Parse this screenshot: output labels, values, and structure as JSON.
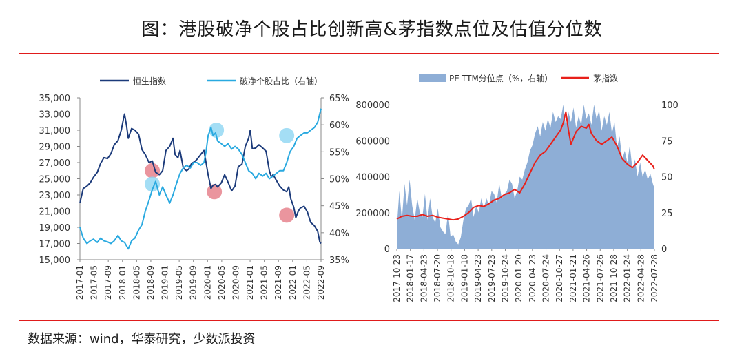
{
  "title": "图：港股破净个股占比创新高&茅指数点位及估值分位数",
  "source": "数据来源：wind，华泰研究，少数派投资",
  "colors": {
    "hsi": "#1b3a7a",
    "ratio": "#29a9e0",
    "pe_area": "#8eaed6",
    "mao": "#e8201a",
    "rule": "#e01b1b",
    "red_marker": "#e57a86",
    "blue_marker": "#8dd6f2"
  },
  "chart_data": [
    {
      "type": "line",
      "legend": [
        "恒生指数",
        "破净个股占比（右轴）"
      ],
      "x_tick_labels": [
        "2017-01",
        "2017-05",
        "2017-09",
        "2018-01",
        "2018-05",
        "2018-09",
        "2019-01",
        "2019-05",
        "2019-09",
        "2020-01",
        "2020-05",
        "2020-09",
        "2021-01",
        "2021-05",
        "2021-09",
        "2022-01",
        "2022-05",
        "2022-09"
      ],
      "y_left_ticks": [
        "35,000",
        "33,000",
        "31,000",
        "29,000",
        "27,000",
        "25,000",
        "23,000",
        "21,000",
        "19,000",
        "17,000",
        "15,000"
      ],
      "y_right_ticks": [
        "65%",
        "60%",
        "55%",
        "50%",
        "45%",
        "40%",
        "35%"
      ],
      "ylim_left": [
        15000,
        35000
      ],
      "ylim_right": [
        35,
        65
      ],
      "xlim": [
        2017.0,
        2022.83
      ],
      "series": [
        {
          "name": "恒生指数",
          "axis": "left",
          "x": [
            2017.0,
            2017.08,
            2017.17,
            2017.25,
            2017.33,
            2017.42,
            2017.5,
            2017.58,
            2017.67,
            2017.75,
            2017.83,
            2017.92,
            2018.0,
            2018.05,
            2018.08,
            2018.13,
            2018.17,
            2018.25,
            2018.33,
            2018.42,
            2018.5,
            2018.58,
            2018.67,
            2018.75,
            2018.83,
            2018.92,
            2019.0,
            2019.08,
            2019.17,
            2019.25,
            2019.3,
            2019.37,
            2019.42,
            2019.5,
            2019.58,
            2019.63,
            2019.7,
            2019.77,
            2019.83,
            2019.92,
            2020.0,
            2020.05,
            2020.1,
            2020.17,
            2020.22,
            2020.28,
            2020.33,
            2020.42,
            2020.5,
            2020.58,
            2020.67,
            2020.75,
            2020.83,
            2020.92,
            2021.0,
            2021.08,
            2021.12,
            2021.17,
            2021.25,
            2021.33,
            2021.42,
            2021.5,
            2021.58,
            2021.63,
            2021.67,
            2021.75,
            2021.83,
            2021.92,
            2022.0,
            2022.05,
            2022.1,
            2022.17,
            2022.22,
            2022.28,
            2022.33,
            2022.42,
            2022.5,
            2022.58,
            2022.67,
            2022.75,
            2022.8,
            2022.83
          ],
          "values": [
            22000,
            23800,
            24100,
            24500,
            25200,
            25800,
            26900,
            27600,
            27500,
            28100,
            29200,
            29700,
            31000,
            32300,
            33000,
            31500,
            30000,
            31200,
            31000,
            30500,
            28600,
            28000,
            27000,
            27200,
            25800,
            25500,
            26000,
            28500,
            29000,
            30000,
            28000,
            27600,
            28500,
            26300,
            26000,
            26200,
            26900,
            27100,
            27400,
            28000,
            28500,
            27000,
            25500,
            23800,
            24200,
            24300,
            24000,
            24500,
            25500,
            24600,
            23500,
            24100,
            26500,
            26800,
            29000,
            30000,
            31000,
            28700,
            28800,
            29200,
            28800,
            28400,
            26000,
            25200,
            25500,
            24800,
            24100,
            23600,
            23400,
            24000,
            22500,
            21500,
            20200,
            21000,
            21400,
            21600,
            20900,
            19600,
            19200,
            18500,
            17200,
            17000
          ]
        },
        {
          "name": "破净个股占比（右轴）",
          "axis": "right",
          "x": [
            2017.0,
            2017.08,
            2017.17,
            2017.25,
            2017.33,
            2017.42,
            2017.5,
            2017.58,
            2017.67,
            2017.75,
            2017.83,
            2017.92,
            2018.0,
            2018.08,
            2018.17,
            2018.25,
            2018.33,
            2018.42,
            2018.5,
            2018.58,
            2018.67,
            2018.75,
            2018.83,
            2018.92,
            2019.0,
            2019.08,
            2019.17,
            2019.25,
            2019.33,
            2019.42,
            2019.5,
            2019.58,
            2019.67,
            2019.75,
            2019.83,
            2019.92,
            2020.0,
            2020.05,
            2020.1,
            2020.17,
            2020.22,
            2020.28,
            2020.33,
            2020.42,
            2020.5,
            2020.58,
            2020.67,
            2020.75,
            2020.83,
            2020.92,
            2021.0,
            2021.08,
            2021.17,
            2021.25,
            2021.33,
            2021.42,
            2021.5,
            2021.58,
            2021.67,
            2021.75,
            2021.83,
            2021.92,
            2022.0,
            2022.08,
            2022.17,
            2022.25,
            2022.33,
            2022.42,
            2022.5,
            2022.58,
            2022.67,
            2022.75,
            2022.83
          ],
          "values": [
            41,
            39,
            38,
            38.5,
            38.8,
            38.2,
            39,
            38.5,
            38.3,
            38,
            38.5,
            39.5,
            38.5,
            38.2,
            37,
            38.5,
            39,
            40.5,
            41.5,
            44,
            46,
            48,
            49.5,
            47,
            48.5,
            47,
            45.5,
            47,
            49,
            51,
            52,
            52.5,
            52,
            53,
            53,
            52.5,
            53,
            55,
            58,
            59.5,
            58,
            58.5,
            57,
            56.5,
            56,
            56.5,
            55.5,
            56,
            55.5,
            54.5,
            53,
            51.5,
            51,
            50,
            51,
            50.5,
            51,
            50,
            50.5,
            51,
            51.5,
            51.5,
            53,
            55,
            56,
            57.5,
            58,
            58.5,
            58.5,
            59,
            59.5,
            60.5,
            63
          ]
        }
      ],
      "annotations": [
        {
          "label": "marker",
          "color": "red",
          "x": 2018.75,
          "axis": "left",
          "y": 26000
        },
        {
          "label": "marker",
          "color": "blue",
          "x": 2018.75,
          "axis": "right",
          "y": 49
        },
        {
          "label": "marker",
          "color": "blue",
          "x": 2020.3,
          "axis": "right",
          "y": 59
        },
        {
          "label": "marker",
          "color": "red",
          "x": 2020.25,
          "axis": "left",
          "y": 23400
        },
        {
          "label": "marker",
          "color": "blue",
          "x": 2022.0,
          "axis": "right",
          "y": 58
        },
        {
          "label": "marker",
          "color": "red",
          "x": 2022.0,
          "axis": "left",
          "y": 20500
        }
      ]
    },
    {
      "type": "area+line",
      "legend": [
        "PE-TTM分位点（%，右轴）",
        "茅指数"
      ],
      "x_tick_labels": [
        "2017-10-23",
        "2018-01-17",
        "2018-04-23",
        "2018-07-20",
        "2018-10-18",
        "2019-01-18",
        "2019-04-23",
        "2019-07-23",
        "2019-10-24",
        "2020-01-20",
        "2020-04-23",
        "2020-07-24",
        "2020-10-27",
        "2021-01-21",
        "2021-04-26",
        "2021-07-26",
        "2021-10-28",
        "2022-01-24",
        "2022-04-28",
        "2022-07-28"
      ],
      "y_left_ticks": [
        "800000",
        "600000",
        "400000",
        "200000",
        "0"
      ],
      "y_right_ticks": [
        "100",
        "75",
        "50",
        "25",
        "0"
      ],
      "ylim_left": [
        0,
        800000
      ],
      "ylim_right": [
        0,
        100
      ],
      "xlim": [
        2017.8,
        2022.83
      ],
      "series": [
        {
          "name": "PE-TTM分位点（%，右轴）",
          "axis": "right",
          "type": "area",
          "x": [
            2017.8,
            2017.85,
            2017.9,
            2017.95,
            2018.0,
            2018.05,
            2018.1,
            2018.15,
            2018.2,
            2018.25,
            2018.3,
            2018.35,
            2018.4,
            2018.45,
            2018.5,
            2018.55,
            2018.6,
            2018.65,
            2018.7,
            2018.75,
            2018.8,
            2018.85,
            2018.9,
            2018.95,
            2019.0,
            2019.05,
            2019.1,
            2019.15,
            2019.2,
            2019.25,
            2019.3,
            2019.35,
            2019.4,
            2019.45,
            2019.5,
            2019.55,
            2019.6,
            2019.65,
            2019.7,
            2019.75,
            2019.8,
            2019.85,
            2019.9,
            2019.95,
            2020.0,
            2020.05,
            2020.1,
            2020.15,
            2020.2,
            2020.25,
            2020.3,
            2020.35,
            2020.4,
            2020.45,
            2020.5,
            2020.55,
            2020.6,
            2020.65,
            2020.7,
            2020.75,
            2020.8,
            2020.85,
            2020.9,
            2020.95,
            2021.0,
            2021.05,
            2021.1,
            2021.15,
            2021.2,
            2021.25,
            2021.3,
            2021.35,
            2021.4,
            2021.45,
            2021.5,
            2021.55,
            2021.6,
            2021.65,
            2021.7,
            2021.75,
            2021.8,
            2021.85,
            2021.9,
            2021.95,
            2022.0,
            2022.05,
            2022.1,
            2022.15,
            2022.2,
            2022.25,
            2022.3,
            2022.35,
            2022.4,
            2022.45,
            2022.5,
            2022.55,
            2022.6,
            2022.65,
            2022.7,
            2022.75,
            2022.8,
            2022.83
          ],
          "values": [
            15,
            40,
            20,
            45,
            30,
            48,
            30,
            20,
            35,
            25,
            22,
            38,
            20,
            35,
            22,
            18,
            28,
            15,
            12,
            10,
            25,
            8,
            10,
            5,
            3,
            8,
            20,
            28,
            30,
            35,
            22,
            30,
            25,
            35,
            28,
            35,
            30,
            40,
            38,
            32,
            45,
            35,
            38,
            40,
            48,
            45,
            35,
            40,
            50,
            48,
            55,
            60,
            68,
            72,
            80,
            85,
            78,
            88,
            82,
            90,
            84,
            95,
            88,
            92,
            90,
            100,
            85,
            95,
            88,
            98,
            84,
            92,
            86,
            100,
            90,
            94,
            86,
            100,
            90,
            96,
            82,
            92,
            86,
            95,
            80,
            88,
            70,
            78,
            62,
            68,
            60,
            72,
            55,
            62,
            50,
            60,
            50,
            55,
            48,
            52,
            45,
            42
          ]
        },
        {
          "name": "茅指数",
          "axis": "left",
          "type": "line",
          "x": [
            2017.8,
            2017.9,
            2018.0,
            2018.1,
            2018.2,
            2018.3,
            2018.4,
            2018.5,
            2018.6,
            2018.7,
            2018.8,
            2018.9,
            2019.0,
            2019.1,
            2019.2,
            2019.3,
            2019.4,
            2019.5,
            2019.6,
            2019.7,
            2019.8,
            2019.9,
            2020.0,
            2020.1,
            2020.2,
            2020.3,
            2020.4,
            2020.5,
            2020.6,
            2020.7,
            2020.8,
            2020.9,
            2021.0,
            2021.05,
            2021.1,
            2021.15,
            2021.2,
            2021.3,
            2021.4,
            2021.5,
            2021.55,
            2021.6,
            2021.7,
            2021.8,
            2021.9,
            2022.0,
            2022.1,
            2022.2,
            2022.3,
            2022.4,
            2022.5,
            2022.6,
            2022.7,
            2022.8,
            2022.83
          ],
          "values": [
            165000,
            180000,
            185000,
            180000,
            180000,
            190000,
            180000,
            185000,
            175000,
            170000,
            165000,
            160000,
            165000,
            180000,
            200000,
            230000,
            240000,
            235000,
            250000,
            270000,
            280000,
            300000,
            310000,
            330000,
            310000,
            360000,
            420000,
            480000,
            520000,
            540000,
            580000,
            620000,
            660000,
            700000,
            760000,
            660000,
            580000,
            650000,
            680000,
            670000,
            690000,
            640000,
            600000,
            580000,
            600000,
            620000,
            570000,
            500000,
            470000,
            450000,
            480000,
            520000,
            490000,
            460000,
            440000
          ]
        }
      ]
    }
  ]
}
